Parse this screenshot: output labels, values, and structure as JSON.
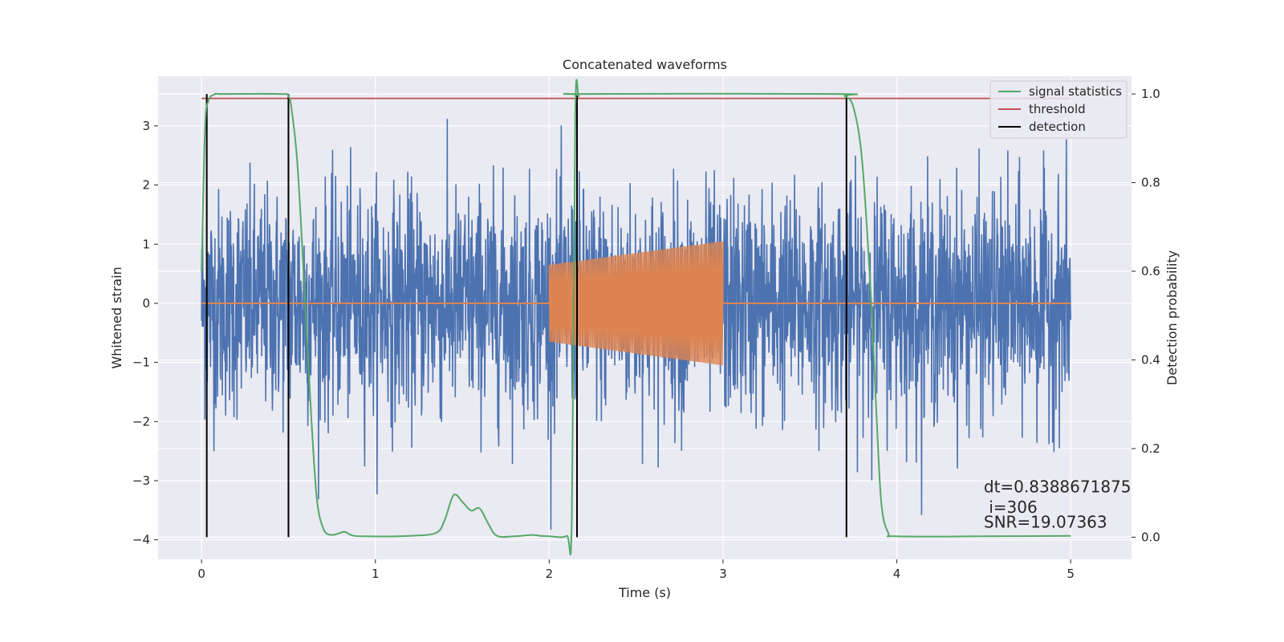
{
  "chart_data": {
    "type": "line",
    "title": "Concatenated waveforms",
    "xlabel": "Time (s)",
    "ylabel": "Whitened strain",
    "y2label": "Detection probability",
    "xlim": [
      -0.25,
      5.35
    ],
    "ylim": [
      -4.33,
      3.84
    ],
    "y2lim": [
      -0.05,
      1.04
    ],
    "xticks": [
      0,
      1,
      2,
      3,
      4,
      5
    ],
    "yticks": [
      -4,
      -3,
      -2,
      -1,
      0,
      1,
      2,
      3
    ],
    "y2ticks": [
      "0.0",
      "0.2",
      "0.4",
      "0.6",
      "0.8",
      "1.0"
    ],
    "grid": true,
    "legend_position": "top-right",
    "colors": {
      "strain": "#4c72b0",
      "injected": "#dd8452",
      "signal": "#55a868",
      "threshold": "#c44e52",
      "detection": "#000000",
      "background": "#eaeaf2",
      "grid": "#ffffff"
    },
    "series": [
      {
        "kind": "strain",
        "noise_range": [
          0,
          5
        ],
        "typical_abs_peak": 2.2,
        "max_peak": 3.2,
        "min_trough": -4.0
      },
      {
        "kind": "injected",
        "x_range": [
          2,
          3
        ],
        "amplitude_start": 0.65,
        "amplitude_end": 1.05
      },
      {
        "name": "signal statistics",
        "axis": "y2",
        "x": [
          0.0,
          0.02,
          0.04,
          0.08,
          0.12,
          0.45,
          0.5,
          0.52,
          0.55,
          0.58,
          0.62,
          0.66,
          0.7,
          0.75,
          0.82,
          0.86,
          0.92,
          1.2,
          1.35,
          1.4,
          1.45,
          1.5,
          1.55,
          1.6,
          1.65,
          1.7,
          1.8,
          1.9,
          1.95,
          2.0,
          2.1,
          2.13,
          2.15,
          2.17,
          2.2,
          3.65,
          3.7,
          3.75,
          3.8,
          3.85,
          3.88,
          3.91,
          3.95,
          4.0,
          4.5,
          5.0
        ],
        "values": [
          0.6,
          0.92,
          0.985,
          1.0,
          1.0,
          1.0,
          0.995,
          0.96,
          0.85,
          0.65,
          0.35,
          0.1,
          0.02,
          0.005,
          0.012,
          0.005,
          0.002,
          0.003,
          0.01,
          0.04,
          0.095,
          0.08,
          0.06,
          0.065,
          0.03,
          0.003,
          0.002,
          0.005,
          0.003,
          0.002,
          0.003,
          0.04,
          0.95,
          0.995,
          1.0,
          1.0,
          0.995,
          0.97,
          0.85,
          0.55,
          0.3,
          0.08,
          0.01,
          0.002,
          0.002,
          0.003
        ]
      },
      {
        "name": "threshold",
        "axis": "y2",
        "x": [
          0,
          5
        ],
        "values": [
          0.99,
          0.99
        ]
      },
      {
        "name": "detection",
        "axis": "y2",
        "vlines": [
          0.03,
          0.5,
          2.16,
          3.71
        ],
        "vline_range": [
          0,
          1.0
        ]
      }
    ],
    "annotations": [
      {
        "text": "dt=0.8388671875",
        "x": 4.5,
        "y": -3.1
      },
      {
        "text": " i=306",
        "x": 4.5,
        "y": -3.45
      },
      {
        "text": "SNR=19.07363",
        "x": 4.5,
        "y": -3.7
      }
    ]
  }
}
